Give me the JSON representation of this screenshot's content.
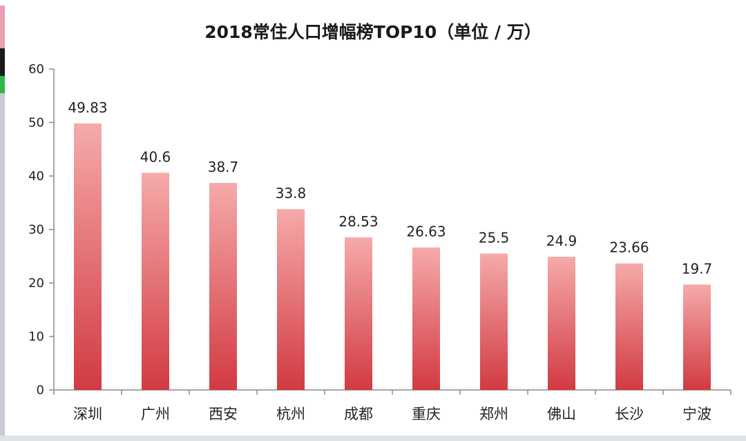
{
  "chart_data": {
    "type": "bar",
    "title": "2018常住人口增幅榜TOP10（单位 / 万）",
    "categories": [
      "深圳",
      "广州",
      "西安",
      "杭州",
      "成都",
      "重庆",
      "郑州",
      "佛山",
      "长沙",
      "宁波"
    ],
    "values": [
      49.83,
      40.6,
      38.7,
      33.8,
      28.53,
      26.63,
      25.5,
      24.9,
      23.66,
      19.7
    ],
    "value_labels": [
      "49.83",
      "40.6",
      "38.7",
      "33.8",
      "28.53",
      "26.63",
      "25.5",
      "24.9",
      "23.66",
      "19.7"
    ],
    "ylim": [
      0,
      60
    ],
    "yticks": [
      "0",
      "10",
      "20",
      "30",
      "40",
      "50",
      "60"
    ],
    "xlabel": "",
    "ylabel": "",
    "grid": false,
    "bar_color_top": "#f5aaaa",
    "bar_color_bottom": "#d23a42",
    "axis_color": "#8a8a8a"
  },
  "ui": {
    "edge_colors": [
      "#e8a0b0",
      "#1a1a1a",
      "#2db84a",
      "#c8ccd2"
    ]
  }
}
